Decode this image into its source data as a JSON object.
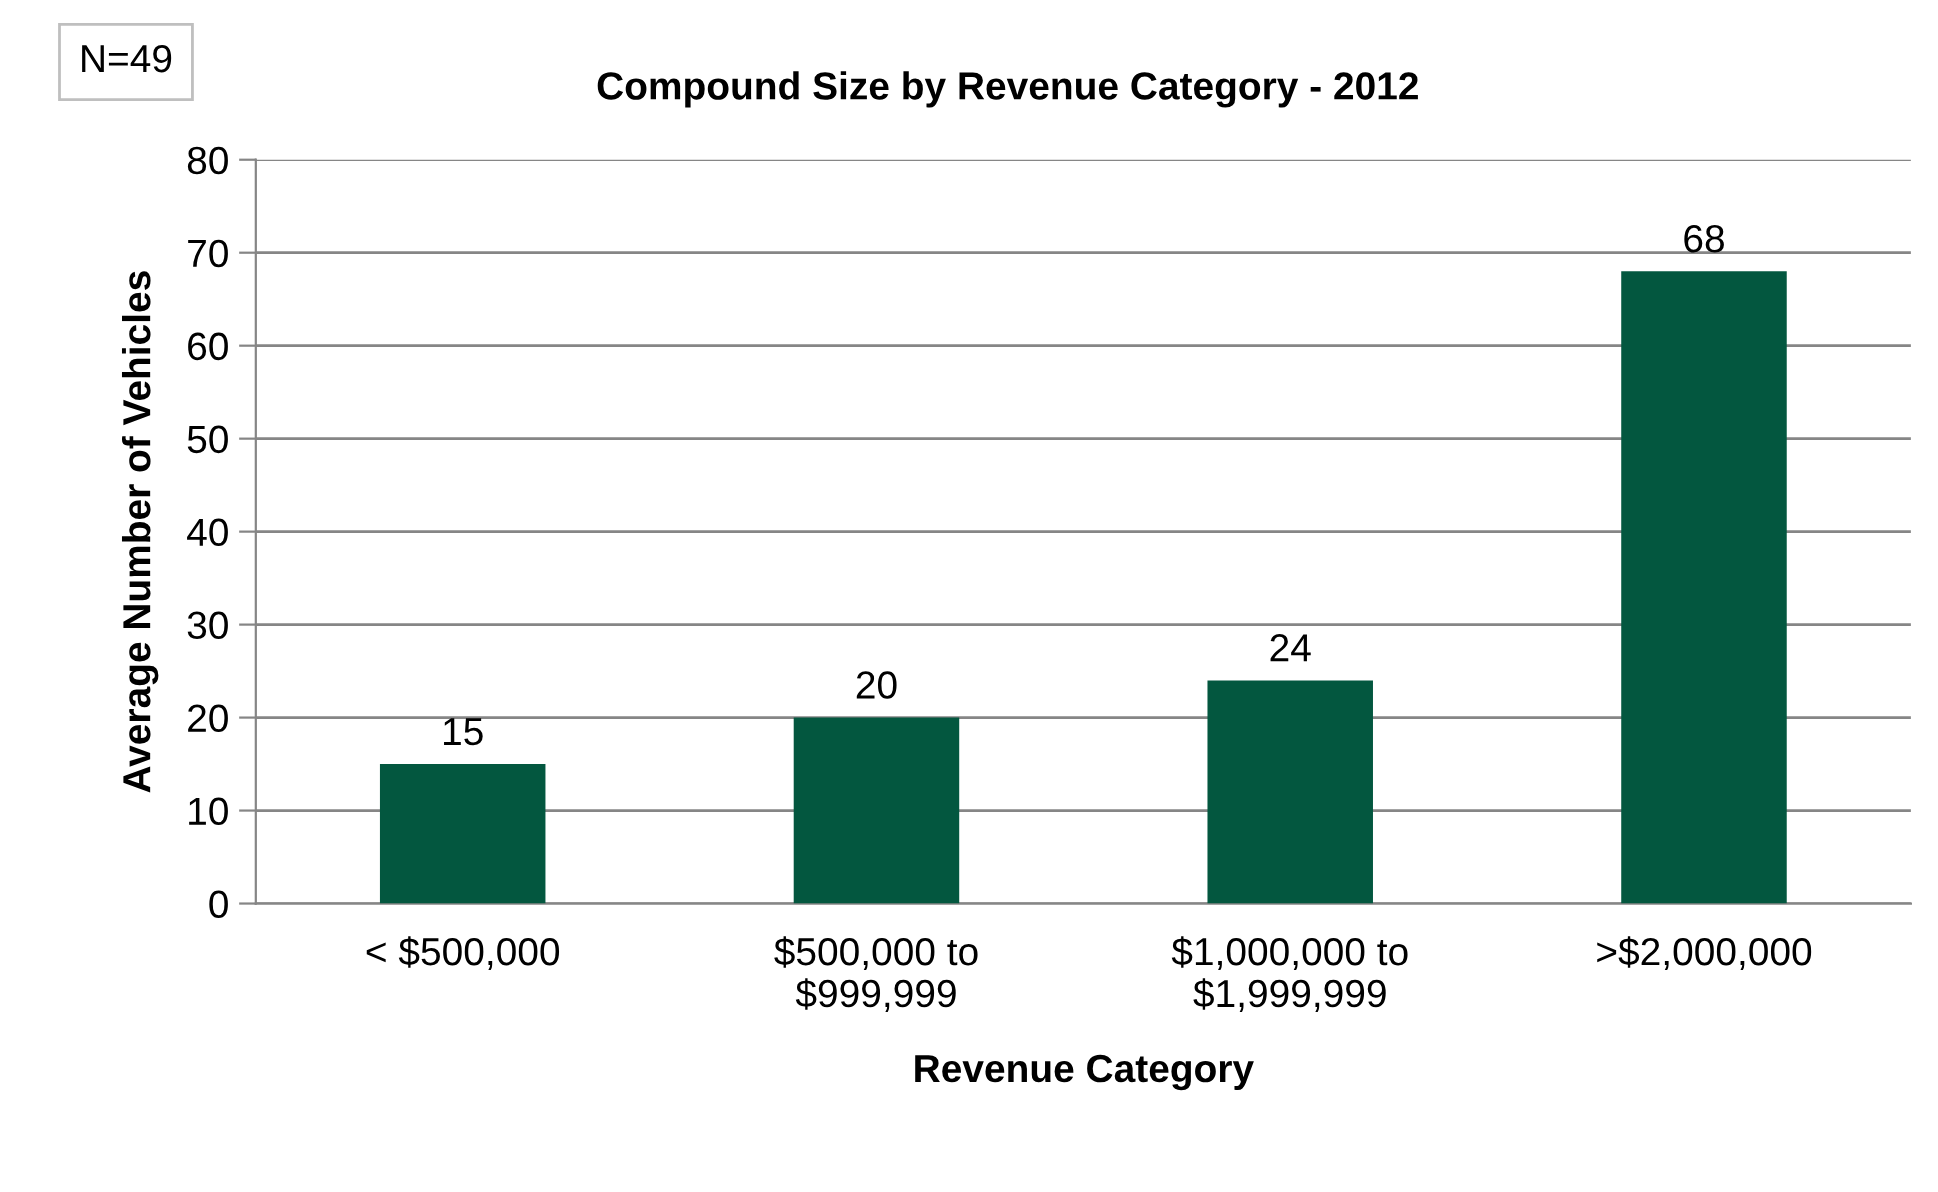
{
  "chart_data": {
    "type": "bar",
    "title": "Compound Size by Revenue Category - 2012",
    "xlabel": "Revenue Category",
    "ylabel": "Average Number of Vehicles",
    "categories": [
      "< $500,000",
      "$500,000 to\n$999,999",
      "$1,000,000 to\n$1,999,999",
      ">$2,000,000"
    ],
    "values": [
      15,
      20,
      24,
      68
    ],
    "color": "#03573f",
    "ylim": [
      0,
      80
    ],
    "yticks": [
      0,
      10,
      20,
      30,
      40,
      50,
      60,
      70,
      80
    ],
    "grid": "y",
    "data_labels": true,
    "annotations": [
      "N=49"
    ]
  }
}
